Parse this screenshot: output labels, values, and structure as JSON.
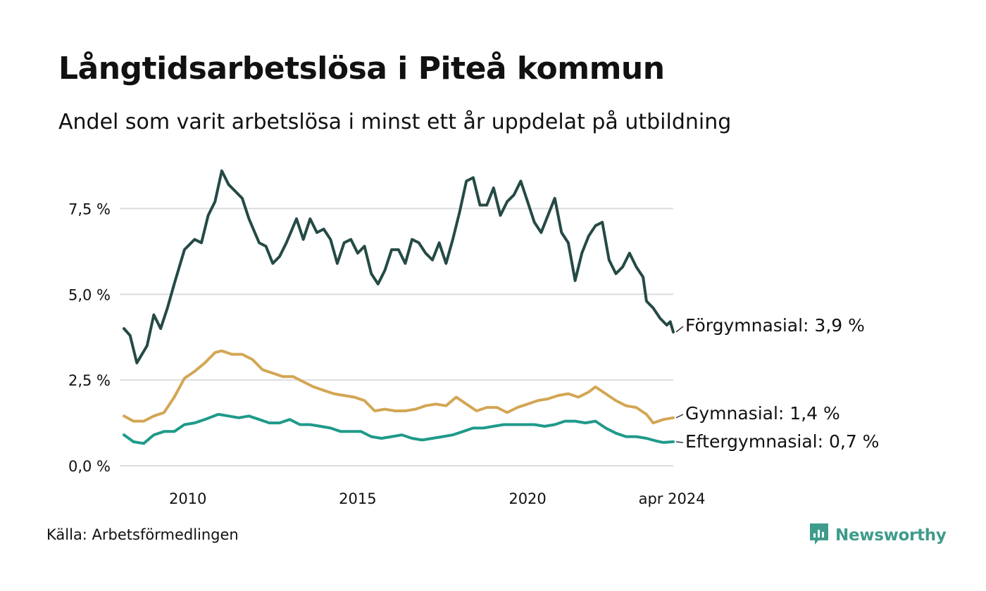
{
  "colors": {
    "forgymnasial": "#254a45",
    "gymnasial": "#d3a654",
    "eftergymnasial": "#1f9a8a",
    "grid": "#dddddd",
    "brand": "#3f9c8c"
  },
  "footer": {
    "source": "Källa: Arbetsförmedlingen",
    "brand_name": "Newsworthy",
    "brand_icon": "bar-chart-speech-bubble-icon"
  },
  "chart_data": {
    "type": "line",
    "title": "Långtidsarbetslösa i Piteå kommun",
    "subtitle": "Andel som varit arbetslösa i minst ett år uppdelat på utbildning",
    "xlabel": "",
    "ylabel": "",
    "x_range": [
      2008.12,
      2024.29
    ],
    "ylim": [
      0,
      8.8
    ],
    "grid": true,
    "y_ticks": [
      {
        "value": 0,
        "label": "0,0 %"
      },
      {
        "value": 2.5,
        "label": "2,5 %"
      },
      {
        "value": 5,
        "label": "5,0 %"
      },
      {
        "value": 7.5,
        "label": "7,5 %"
      }
    ],
    "x_ticks": [
      {
        "value": 2010,
        "label": "2010"
      },
      {
        "value": 2015,
        "label": "2015"
      },
      {
        "value": 2020,
        "label": "2020"
      },
      {
        "value": 2024.25,
        "label": "apr 2024"
      }
    ],
    "series": [
      {
        "key": "forgymnasial",
        "name": "Förgymnasial",
        "end_label": "Förgymnasial: 3,9 %",
        "points": [
          [
            2008.12,
            4.0
          ],
          [
            2008.3,
            3.8
          ],
          [
            2008.5,
            3.0
          ],
          [
            2008.8,
            3.5
          ],
          [
            2009.0,
            4.4
          ],
          [
            2009.2,
            4.0
          ],
          [
            2009.4,
            4.6
          ],
          [
            2009.6,
            5.3
          ],
          [
            2009.9,
            6.3
          ],
          [
            2010.2,
            6.6
          ],
          [
            2010.4,
            6.5
          ],
          [
            2010.6,
            7.3
          ],
          [
            2010.8,
            7.7
          ],
          [
            2011.0,
            8.6
          ],
          [
            2011.2,
            8.2
          ],
          [
            2011.4,
            8.0
          ],
          [
            2011.6,
            7.8
          ],
          [
            2011.8,
            7.2
          ],
          [
            2012.1,
            6.5
          ],
          [
            2012.3,
            6.4
          ],
          [
            2012.5,
            5.9
          ],
          [
            2012.7,
            6.1
          ],
          [
            2012.9,
            6.5
          ],
          [
            2013.2,
            7.2
          ],
          [
            2013.4,
            6.6
          ],
          [
            2013.6,
            7.2
          ],
          [
            2013.8,
            6.8
          ],
          [
            2014.0,
            6.9
          ],
          [
            2014.2,
            6.6
          ],
          [
            2014.4,
            5.9
          ],
          [
            2014.6,
            6.5
          ],
          [
            2014.8,
            6.6
          ],
          [
            2015.0,
            6.2
          ],
          [
            2015.2,
            6.4
          ],
          [
            2015.4,
            5.6
          ],
          [
            2015.6,
            5.3
          ],
          [
            2015.8,
            5.7
          ],
          [
            2016.0,
            6.3
          ],
          [
            2016.2,
            6.3
          ],
          [
            2016.4,
            5.9
          ],
          [
            2016.6,
            6.6
          ],
          [
            2016.8,
            6.5
          ],
          [
            2017.0,
            6.2
          ],
          [
            2017.2,
            6.0
          ],
          [
            2017.4,
            6.5
          ],
          [
            2017.6,
            5.9
          ],
          [
            2017.8,
            6.6
          ],
          [
            2018.0,
            7.4
          ],
          [
            2018.2,
            8.3
          ],
          [
            2018.4,
            8.4
          ],
          [
            2018.6,
            7.6
          ],
          [
            2018.8,
            7.6
          ],
          [
            2019.0,
            8.1
          ],
          [
            2019.2,
            7.3
          ],
          [
            2019.4,
            7.7
          ],
          [
            2019.6,
            7.9
          ],
          [
            2019.8,
            8.3
          ],
          [
            2020.0,
            7.7
          ],
          [
            2020.2,
            7.1
          ],
          [
            2020.4,
            6.8
          ],
          [
            2020.6,
            7.3
          ],
          [
            2020.8,
            7.8
          ],
          [
            2021.0,
            6.8
          ],
          [
            2021.2,
            6.5
          ],
          [
            2021.4,
            5.4
          ],
          [
            2021.6,
            6.2
          ],
          [
            2021.8,
            6.7
          ],
          [
            2022.0,
            7.0
          ],
          [
            2022.2,
            7.1
          ],
          [
            2022.4,
            6.0
          ],
          [
            2022.6,
            5.6
          ],
          [
            2022.8,
            5.8
          ],
          [
            2023.0,
            6.2
          ],
          [
            2023.2,
            5.8
          ],
          [
            2023.4,
            5.5
          ],
          [
            2023.5,
            4.8
          ],
          [
            2023.7,
            4.6
          ],
          [
            2023.9,
            4.3
          ],
          [
            2024.1,
            4.1
          ],
          [
            2024.2,
            4.2
          ],
          [
            2024.29,
            3.9
          ]
        ]
      },
      {
        "key": "gymnasial",
        "name": "Gymnasial",
        "end_label": "Gymnasial: 1,4 %",
        "points": [
          [
            2008.12,
            1.45
          ],
          [
            2008.4,
            1.3
          ],
          [
            2008.7,
            1.3
          ],
          [
            2009.0,
            1.45
          ],
          [
            2009.3,
            1.55
          ],
          [
            2009.6,
            2.0
          ],
          [
            2009.9,
            2.55
          ],
          [
            2010.2,
            2.75
          ],
          [
            2010.5,
            3.0
          ],
          [
            2010.8,
            3.3
          ],
          [
            2011.0,
            3.35
          ],
          [
            2011.3,
            3.25
          ],
          [
            2011.6,
            3.25
          ],
          [
            2011.9,
            3.1
          ],
          [
            2012.2,
            2.8
          ],
          [
            2012.5,
            2.7
          ],
          [
            2012.8,
            2.6
          ],
          [
            2013.1,
            2.6
          ],
          [
            2013.4,
            2.45
          ],
          [
            2013.7,
            2.3
          ],
          [
            2014.0,
            2.2
          ],
          [
            2014.3,
            2.1
          ],
          [
            2014.6,
            2.05
          ],
          [
            2014.9,
            2.0
          ],
          [
            2015.2,
            1.9
          ],
          [
            2015.5,
            1.6
          ],
          [
            2015.8,
            1.65
          ],
          [
            2016.1,
            1.6
          ],
          [
            2016.4,
            1.6
          ],
          [
            2016.7,
            1.65
          ],
          [
            2017.0,
            1.75
          ],
          [
            2017.3,
            1.8
          ],
          [
            2017.6,
            1.75
          ],
          [
            2017.9,
            2.0
          ],
          [
            2018.2,
            1.8
          ],
          [
            2018.5,
            1.6
          ],
          [
            2018.8,
            1.7
          ],
          [
            2019.1,
            1.7
          ],
          [
            2019.4,
            1.55
          ],
          [
            2019.7,
            1.7
          ],
          [
            2020.0,
            1.8
          ],
          [
            2020.3,
            1.9
          ],
          [
            2020.6,
            1.95
          ],
          [
            2020.9,
            2.05
          ],
          [
            2021.2,
            2.1
          ],
          [
            2021.5,
            2.0
          ],
          [
            2021.8,
            2.15
          ],
          [
            2022.0,
            2.3
          ],
          [
            2022.3,
            2.1
          ],
          [
            2022.6,
            1.9
          ],
          [
            2022.9,
            1.75
          ],
          [
            2023.2,
            1.7
          ],
          [
            2023.5,
            1.5
          ],
          [
            2023.7,
            1.25
          ],
          [
            2024.0,
            1.35
          ],
          [
            2024.29,
            1.4
          ]
        ]
      },
      {
        "key": "eftergymnasial",
        "name": "Eftergymnasial",
        "end_label": "Eftergymnasial: 0,7 %",
        "points": [
          [
            2008.12,
            0.9
          ],
          [
            2008.4,
            0.7
          ],
          [
            2008.7,
            0.65
          ],
          [
            2009.0,
            0.9
          ],
          [
            2009.3,
            1.0
          ],
          [
            2009.6,
            1.0
          ],
          [
            2009.9,
            1.2
          ],
          [
            2010.2,
            1.25
          ],
          [
            2010.5,
            1.35
          ],
          [
            2010.9,
            1.5
          ],
          [
            2011.2,
            1.45
          ],
          [
            2011.5,
            1.4
          ],
          [
            2011.8,
            1.45
          ],
          [
            2012.1,
            1.35
          ],
          [
            2012.4,
            1.25
          ],
          [
            2012.7,
            1.25
          ],
          [
            2013.0,
            1.35
          ],
          [
            2013.3,
            1.2
          ],
          [
            2013.6,
            1.2
          ],
          [
            2013.9,
            1.15
          ],
          [
            2014.2,
            1.1
          ],
          [
            2014.5,
            1.0
          ],
          [
            2014.8,
            1.0
          ],
          [
            2015.1,
            1.0
          ],
          [
            2015.4,
            0.85
          ],
          [
            2015.7,
            0.8
          ],
          [
            2016.0,
            0.85
          ],
          [
            2016.3,
            0.9
          ],
          [
            2016.6,
            0.8
          ],
          [
            2016.9,
            0.75
          ],
          [
            2017.2,
            0.8
          ],
          [
            2017.5,
            0.85
          ],
          [
            2017.8,
            0.9
          ],
          [
            2018.1,
            1.0
          ],
          [
            2018.4,
            1.1
          ],
          [
            2018.7,
            1.1
          ],
          [
            2019.0,
            1.15
          ],
          [
            2019.3,
            1.2
          ],
          [
            2019.6,
            1.2
          ],
          [
            2019.9,
            1.2
          ],
          [
            2020.2,
            1.2
          ],
          [
            2020.5,
            1.15
          ],
          [
            2020.8,
            1.2
          ],
          [
            2021.1,
            1.3
          ],
          [
            2021.4,
            1.3
          ],
          [
            2021.7,
            1.25
          ],
          [
            2022.0,
            1.3
          ],
          [
            2022.3,
            1.1
          ],
          [
            2022.6,
            0.95
          ],
          [
            2022.9,
            0.85
          ],
          [
            2023.2,
            0.85
          ],
          [
            2023.5,
            0.8
          ],
          [
            2023.8,
            0.72
          ],
          [
            2024.0,
            0.68
          ],
          [
            2024.29,
            0.7
          ]
        ]
      }
    ]
  }
}
